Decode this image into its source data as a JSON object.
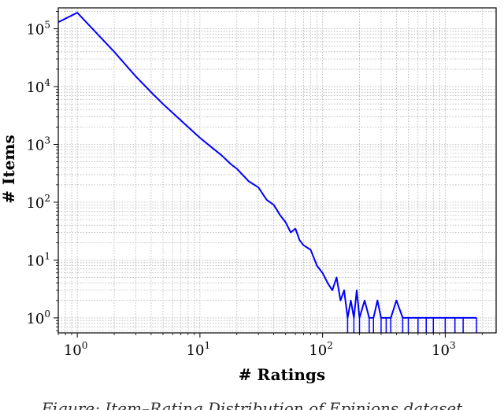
{
  "caption": "Figure: Item–Rating Distribution of Epinions dataset",
  "chart_data": {
    "type": "line",
    "title": "",
    "xlabel": "# Ratings",
    "ylabel": "# Items",
    "xscale": "log",
    "yscale": "log",
    "xlim": [
      0.7,
      2600
    ],
    "ylim": [
      0.55,
      230000
    ],
    "grid": true,
    "legend": "none",
    "line_color": "#0000ff",
    "x_ticks": [
      {
        "value": 1,
        "base": "10",
        "exp": "0"
      },
      {
        "value": 10,
        "base": "10",
        "exp": "1"
      },
      {
        "value": 100,
        "base": "10",
        "exp": "2"
      },
      {
        "value": 1000,
        "base": "10",
        "exp": "3"
      }
    ],
    "y_ticks": [
      {
        "value": 1,
        "base": "10",
        "exp": "0"
      },
      {
        "value": 10,
        "base": "10",
        "exp": "1"
      },
      {
        "value": 100,
        "base": "10",
        "exp": "2"
      },
      {
        "value": 1000,
        "base": "10",
        "exp": "3"
      },
      {
        "value": 10000,
        "base": "10",
        "exp": "4"
      },
      {
        "value": 100000,
        "base": "10",
        "exp": "5"
      }
    ],
    "x": [
      0.7,
      1,
      2,
      3,
      4,
      5,
      6,
      7,
      8,
      10,
      12,
      15,
      18,
      20,
      25,
      30,
      35,
      40,
      45,
      50,
      55,
      60,
      65,
      70,
      80,
      90,
      100,
      110,
      120,
      130,
      140,
      150,
      160,
      170,
      180,
      190,
      200,
      220,
      240,
      260,
      280,
      300,
      330,
      360,
      400,
      450,
      500,
      600,
      700,
      800,
      1000,
      1200,
      1400,
      1800
    ],
    "y": [
      130000,
      190000,
      40000,
      15000,
      8000,
      5000,
      3500,
      2600,
      2000,
      1300,
      950,
      650,
      450,
      380,
      230,
      180,
      110,
      90,
      60,
      45,
      30,
      35,
      22,
      18,
      15,
      8,
      6,
      4,
      3,
      5,
      2,
      3,
      1,
      2,
      1,
      3,
      1,
      2,
      1,
      1,
      2,
      1,
      1,
      1,
      2,
      1,
      1,
      1,
      1,
      1,
      1,
      1,
      1,
      1
    ]
  }
}
